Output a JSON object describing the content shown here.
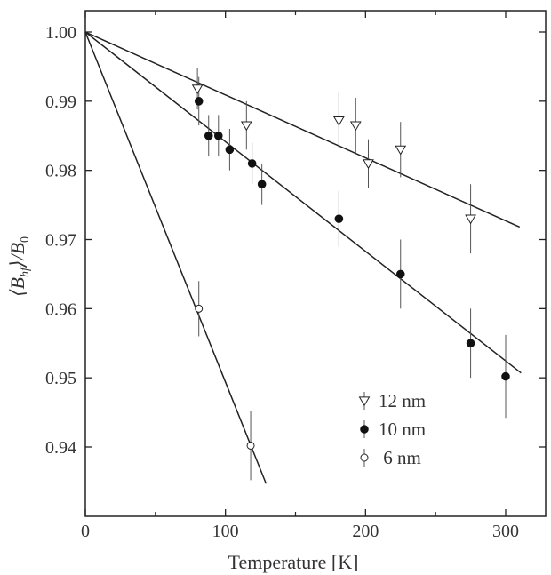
{
  "chart_data": {
    "type": "scatter",
    "xlabel": "Temperature [K]",
    "ylabel_parts": [
      "⟨B",
      "hf",
      "⟩/B",
      "0"
    ],
    "xlim": [
      0,
      330
    ],
    "ylim": [
      0.93,
      1.003
    ],
    "x_ticks": [
      0,
      100,
      200,
      300
    ],
    "x_tick_labels": [
      "0",
      "100",
      "200",
      "300"
    ],
    "x_minor_ticks": [
      50,
      150,
      250
    ],
    "y_ticks": [
      0.94,
      0.95,
      0.96,
      0.97,
      0.98,
      0.99,
      1.0
    ],
    "y_tick_labels": [
      "0.94",
      "0.95",
      "0.96",
      "0.97",
      "0.98",
      "0.99",
      "1.00"
    ],
    "grid": false,
    "legend_position": "bottom-right",
    "series": [
      {
        "name": "12 nm",
        "marker": "open-triangle-down",
        "points": [
          {
            "x": 80,
            "y": 0.9918,
            "err": 0.003
          },
          {
            "x": 115,
            "y": 0.9865,
            "err": 0.0035
          },
          {
            "x": 181,
            "y": 0.9872,
            "err": 0.004
          },
          {
            "x": 193,
            "y": 0.9865,
            "err": 0.004
          },
          {
            "x": 202,
            "y": 0.981,
            "err": 0.0035
          },
          {
            "x": 225,
            "y": 0.983,
            "err": 0.004
          },
          {
            "x": 275,
            "y": 0.973,
            "err": 0.005
          }
        ],
        "fit": [
          [
            0,
            1.0
          ],
          [
            310,
            0.9718
          ]
        ]
      },
      {
        "name": "10 nm",
        "marker": "filled-circle",
        "points": [
          {
            "x": 81,
            "y": 0.99,
            "err": 0.0035
          },
          {
            "x": 88,
            "y": 0.985,
            "err": 0.003
          },
          {
            "x": 95,
            "y": 0.985,
            "err": 0.003
          },
          {
            "x": 103,
            "y": 0.983,
            "err": 0.003
          },
          {
            "x": 119,
            "y": 0.981,
            "err": 0.003
          },
          {
            "x": 126,
            "y": 0.978,
            "err": 0.003
          },
          {
            "x": 181,
            "y": 0.973,
            "err": 0.004
          },
          {
            "x": 225,
            "y": 0.965,
            "err": 0.005
          },
          {
            "x": 275,
            "y": 0.955,
            "err": 0.005
          },
          {
            "x": 300,
            "y": 0.9502,
            "err": 0.006
          }
        ],
        "fit": [
          [
            0,
            1.0
          ],
          [
            311,
            0.9507
          ]
        ]
      },
      {
        "name": " 6 nm",
        "marker": "open-circle",
        "points": [
          {
            "x": 81,
            "y": 0.96,
            "err": 0.004
          },
          {
            "x": 118,
            "y": 0.9402,
            "err": 0.005
          }
        ],
        "fit": [
          [
            0,
            1.0
          ],
          [
            129,
            0.9347
          ]
        ]
      }
    ]
  }
}
